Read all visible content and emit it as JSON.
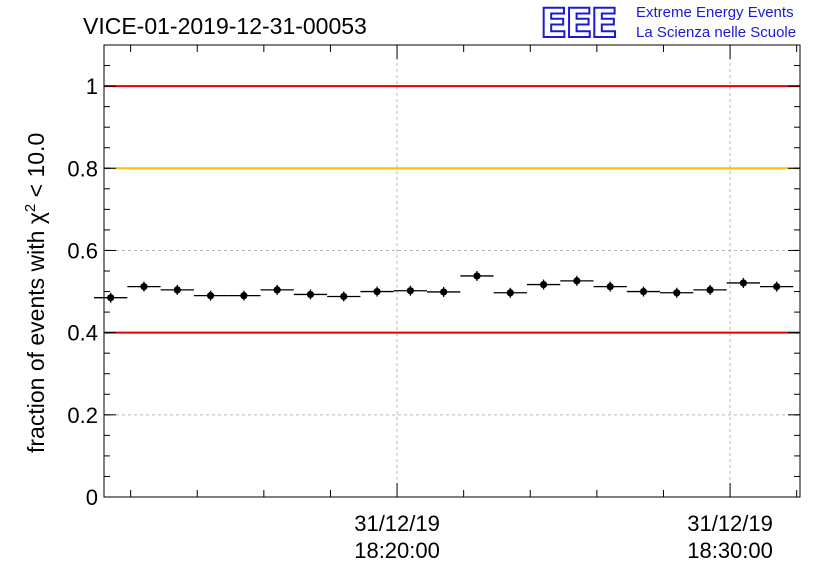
{
  "logo": {
    "mark": "EEE",
    "line1": "Extreme Energy Events",
    "line2": "La Scienza nelle Scuole",
    "color": "#1a1ad6"
  },
  "chart_data": {
    "type": "scatter",
    "title": "VICE-01-2019-12-31-00053",
    "ylabel": "fraction of events with χ² < 10.0",
    "ylabel_main": "fraction of events with ",
    "ylabel_chi": "χ",
    "ylabel_exp": "2",
    "ylabel_tail": " < 10.0",
    "xlabel": "",
    "ylim": [
      0,
      1.1
    ],
    "yticks": [
      0,
      0.2,
      0.4,
      0.6,
      0.8,
      1
    ],
    "ytick_labels": [
      "0",
      "0.2",
      "0.4",
      "0.6",
      "0.8",
      "1"
    ],
    "xticks": [
      {
        "date": "31/12/19",
        "time": "18:20:00"
      },
      {
        "date": "31/12/19",
        "time": "18:30:00"
      }
    ],
    "grid": true,
    "reference_lines": [
      {
        "y": 1.0,
        "color": "#e00000"
      },
      {
        "y": 0.8,
        "color": "#ffc000"
      },
      {
        "y": 0.4,
        "color": "#e00000"
      }
    ],
    "bin_width_minutes": 1,
    "x_range_minutes_before_first_tick": 8.8,
    "x_range_minutes_after_last_tick": 2.1,
    "points": [
      {
        "bin": 1,
        "y": 0.485
      },
      {
        "bin": 2,
        "y": 0.512
      },
      {
        "bin": 3,
        "y": 0.504
      },
      {
        "bin": 4,
        "y": 0.49
      },
      {
        "bin": 5,
        "y": 0.49
      },
      {
        "bin": 6,
        "y": 0.504
      },
      {
        "bin": 7,
        "y": 0.493
      },
      {
        "bin": 8,
        "y": 0.488
      },
      {
        "bin": 9,
        "y": 0.5
      },
      {
        "bin": 10,
        "y": 0.502
      },
      {
        "bin": 11,
        "y": 0.499
      },
      {
        "bin": 12,
        "y": 0.538
      },
      {
        "bin": 13,
        "y": 0.497
      },
      {
        "bin": 14,
        "y": 0.517
      },
      {
        "bin": 15,
        "y": 0.526
      },
      {
        "bin": 16,
        "y": 0.512
      },
      {
        "bin": 17,
        "y": 0.5
      },
      {
        "bin": 18,
        "y": 0.497
      },
      {
        "bin": 19,
        "y": 0.504
      },
      {
        "bin": 20,
        "y": 0.521
      },
      {
        "bin": 21,
        "y": 0.512
      }
    ]
  }
}
